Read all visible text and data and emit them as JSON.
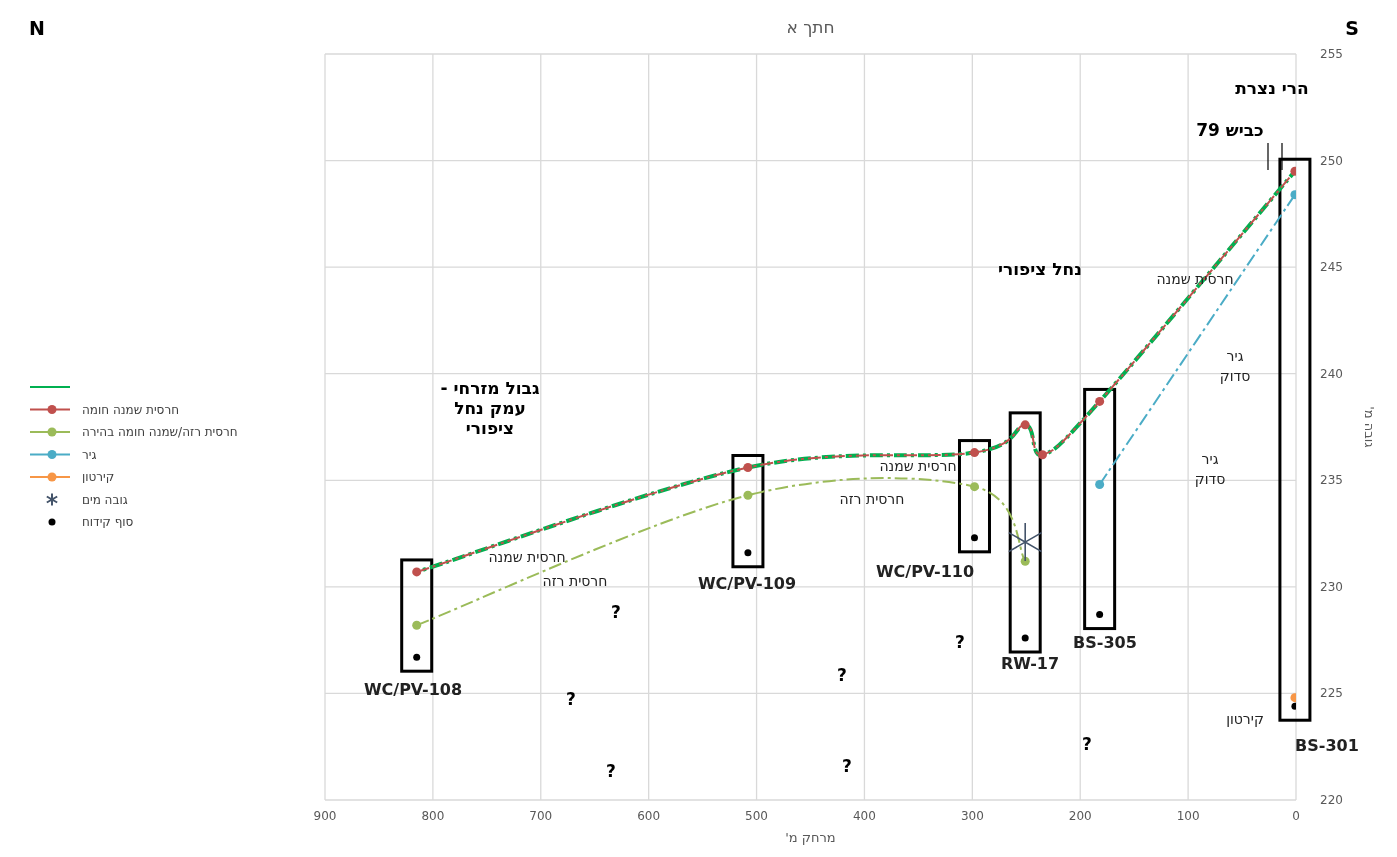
{
  "chart_data": {
    "type": "line",
    "title": "חתך א",
    "xlabel": "מרחק מ'",
    "ylabel": "גובה מ'",
    "xlim": [
      900,
      0
    ],
    "xticks": [
      900,
      800,
      700,
      600,
      500,
      400,
      300,
      200,
      100,
      0
    ],
    "ylim": [
      220,
      255
    ],
    "yticks": [
      220,
      225,
      230,
      235,
      240,
      245,
      250,
      255
    ],
    "grid": true,
    "legend": "left",
    "series": [
      {
        "color": "#00b050",
        "x": [
          815,
          508,
          298,
          251,
          235,
          182,
          1
        ],
        "values": [
          230.7,
          235.6,
          236.3,
          237.6,
          236.2,
          238.7,
          249.5
        ],
        "marker": "none",
        "line_style": "dashed"
      },
      {
        "name": "חרסית שמנה חומה",
        "color": "#c0504d",
        "x": [
          815,
          508,
          298,
          251,
          235,
          182,
          1
        ],
        "values": [
          230.7,
          235.6,
          236.3,
          237.6,
          236.2,
          238.7,
          249.5
        ],
        "marker": "circle",
        "line_style": "dashed"
      },
      {
        "name": "חרסית רזה/שמנה חומה בהירה",
        "color": "#9bbb59",
        "x": [
          815,
          508,
          298,
          251
        ],
        "values": [
          228.2,
          234.3,
          234.7,
          231.2
        ],
        "marker": "circle",
        "line_style": "dashed"
      },
      {
        "name": "גיר",
        "color": "#4bacc6",
        "x": [
          182,
          1
        ],
        "values": [
          234.8,
          248.4
        ],
        "marker": "circle",
        "line_style": "dashed"
      },
      {
        "name": "קירטון",
        "color": "#f79646",
        "x": [
          1
        ],
        "values": [
          224.8
        ],
        "marker": "circle",
        "line_style": "solid"
      },
      {
        "type": "scatter",
        "name": "גובה מים",
        "color": "#44546a",
        "x": [
          251
        ],
        "values": [
          232.1
        ],
        "marker": "cross"
      },
      {
        "type": "scatter",
        "name": "סוף קידוח",
        "color": "#000000",
        "x": [
          815,
          508,
          298,
          251,
          182,
          1
        ],
        "values": [
          226.7,
          231.6,
          232.3,
          227.6,
          228.7,
          224.4
        ],
        "marker": "circle"
      }
    ],
    "annotations": [
      "N",
      "S",
      "הרי נצרת",
      "כביש 79",
      "נחל ציפורי",
      "גבול מזרחי -\nעמק נחל\nציפורי",
      "חרסית שמנה",
      "גיר\nסדוק",
      "גיר\nסדוק",
      "חרסית שמנה",
      "חרסית רזה",
      "חרסית שמנה",
      "חרסית רזה",
      "קירטון",
      "WC/PV-108",
      "WC/PV-109",
      "WC/PV-110",
      "RW-17",
      "BS-305",
      "BS-301",
      "?",
      "?",
      "?",
      "?",
      "?",
      "?",
      "?"
    ]
  }
}
